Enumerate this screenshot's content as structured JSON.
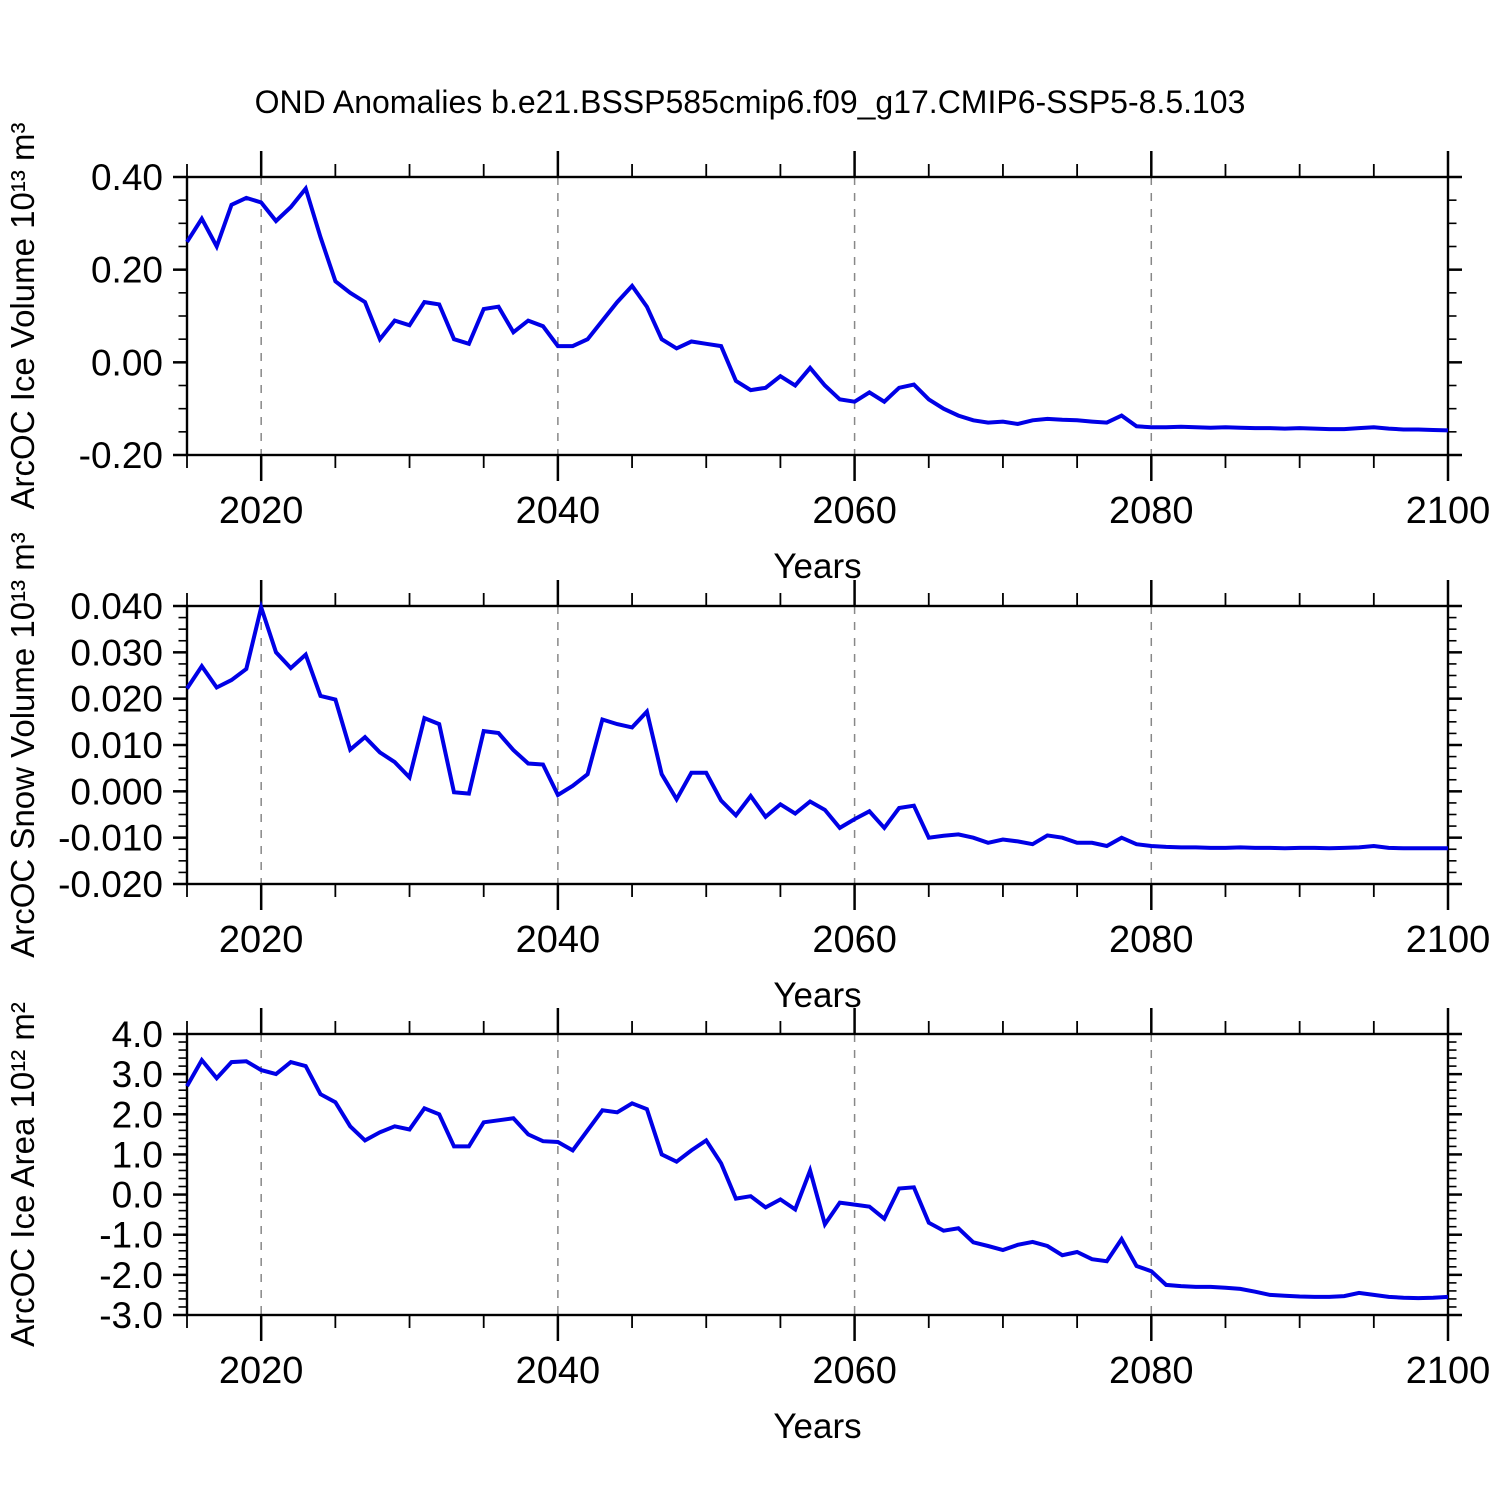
{
  "title": "OND Anomalies b.e21.BSSP585cmip6.f09_g17.CMIP6-SSP5-8.5.103",
  "colors": {
    "line": "#0000e6",
    "grid": "#888888",
    "axis": "#000000"
  },
  "chart_data": {
    "type": "line",
    "title": "OND Anomalies b.e21.BSSP585cmip6.f09_g17.CMIP6-SSP5-8.5.103",
    "xlabel": "Years",
    "x_min": 2015,
    "x_max": 2100,
    "x_major_ticks": [
      2020,
      2040,
      2060,
      2080,
      2100
    ],
    "x_tick_labels": [
      "2020",
      "2040",
      "2060",
      "2080",
      "2100"
    ],
    "x_minor_step": 5,
    "grid_x": [
      2020,
      2040,
      2060,
      2080
    ],
    "legend": "none",
    "x": [
      2015,
      2016,
      2017,
      2018,
      2019,
      2020,
      2021,
      2022,
      2023,
      2024,
      2025,
      2026,
      2027,
      2028,
      2029,
      2030,
      2031,
      2032,
      2033,
      2034,
      2035,
      2036,
      2037,
      2038,
      2039,
      2040,
      2041,
      2042,
      2043,
      2044,
      2045,
      2046,
      2047,
      2048,
      2049,
      2050,
      2051,
      2052,
      2053,
      2054,
      2055,
      2056,
      2057,
      2058,
      2059,
      2060,
      2061,
      2062,
      2063,
      2064,
      2065,
      2066,
      2067,
      2068,
      2069,
      2070,
      2071,
      2072,
      2073,
      2074,
      2075,
      2076,
      2077,
      2078,
      2079,
      2080,
      2081,
      2082,
      2083,
      2084,
      2085,
      2086,
      2087,
      2088,
      2089,
      2090,
      2091,
      2092,
      2093,
      2094,
      2095,
      2096,
      2097,
      2098,
      2099,
      2100
    ],
    "panels": [
      {
        "ylabel": "ArcOC Ice Volume 10¹³ m³",
        "ylim": [
          -0.2,
          0.4
        ],
        "y_major_ticks": [
          0.4,
          0.2,
          0.0,
          -0.2
        ],
        "y_tick_labels": [
          "0.40",
          "0.20",
          "0.00",
          "-0.20"
        ],
        "y_minor_step": 0.05,
        "values": [
          0.26,
          0.31,
          0.25,
          0.34,
          0.355,
          0.345,
          0.305,
          0.335,
          0.375,
          0.27,
          0.175,
          0.15,
          0.13,
          0.05,
          0.09,
          0.08,
          0.13,
          0.125,
          0.05,
          0.04,
          0.115,
          0.12,
          0.065,
          0.09,
          0.078,
          0.035,
          0.035,
          0.05,
          0.09,
          0.13,
          0.165,
          0.12,
          0.05,
          0.03,
          0.045,
          0.04,
          0.035,
          -0.04,
          -0.06,
          -0.055,
          -0.03,
          -0.05,
          -0.012,
          -0.05,
          -0.08,
          -0.085,
          -0.065,
          -0.085,
          -0.055,
          -0.048,
          -0.08,
          -0.1,
          -0.115,
          -0.125,
          -0.13,
          -0.128,
          -0.133,
          -0.125,
          -0.122,
          -0.124,
          -0.125,
          -0.128,
          -0.13,
          -0.115,
          -0.138,
          -0.14,
          -0.14,
          -0.139,
          -0.14,
          -0.141,
          -0.14,
          -0.141,
          -0.142,
          -0.142,
          -0.143,
          -0.142,
          -0.143,
          -0.144,
          -0.144,
          -0.142,
          -0.14,
          -0.143,
          -0.145,
          -0.145,
          -0.146,
          -0.147
        ]
      },
      {
        "ylabel": "ArcOC Snow Volume 10¹³ m³",
        "ylim": [
          -0.02,
          0.04
        ],
        "y_major_ticks": [
          0.04,
          0.03,
          0.02,
          0.01,
          0.0,
          -0.01,
          -0.02
        ],
        "y_tick_labels": [
          "0.040",
          "0.030",
          "0.020",
          "0.010",
          "0.000",
          "-0.010",
          "-0.020"
        ],
        "y_minor_step": 0.0025,
        "values": [
          0.0222,
          0.027,
          0.0224,
          0.024,
          0.0264,
          0.0397,
          0.03,
          0.0266,
          0.0295,
          0.0206,
          0.0198,
          0.009,
          0.0117,
          0.0084,
          0.0063,
          0.003,
          0.0158,
          0.0145,
          -0.0002,
          -0.0005,
          0.013,
          0.0126,
          0.0089,
          0.006,
          0.0058,
          -0.0008,
          0.0012,
          0.0037,
          0.0155,
          0.0145,
          0.0138,
          0.0172,
          0.0037,
          -0.0017,
          0.004,
          0.004,
          -0.002,
          -0.0052,
          -0.001,
          -0.0055,
          -0.0028,
          -0.0048,
          -0.0022,
          -0.004,
          -0.0079,
          -0.006,
          -0.0043,
          -0.0079,
          -0.0036,
          -0.0031,
          -0.01,
          -0.0096,
          -0.0093,
          -0.01,
          -0.0111,
          -0.0104,
          -0.0108,
          -0.0114,
          -0.0095,
          -0.01,
          -0.0111,
          -0.0111,
          -0.0118,
          -0.01,
          -0.0114,
          -0.0118,
          -0.012,
          -0.0121,
          -0.0121,
          -0.0122,
          -0.0122,
          -0.0121,
          -0.0122,
          -0.0122,
          -0.0123,
          -0.0122,
          -0.0122,
          -0.0123,
          -0.0122,
          -0.0121,
          -0.0118,
          -0.0122,
          -0.0123,
          -0.0123,
          -0.0123,
          -0.0123
        ]
      },
      {
        "ylabel": "ArcOC Ice Area 10¹² m²",
        "ylim": [
          -3.0,
          4.0
        ],
        "y_major_ticks": [
          4.0,
          3.0,
          2.0,
          1.0,
          0.0,
          -1.0,
          -2.0,
          -3.0
        ],
        "y_tick_labels": [
          "4.0",
          "3.0",
          "2.0",
          "1.0",
          "0.0",
          "-1.0",
          "-2.0",
          "-3.0"
        ],
        "y_minor_step": 0.2,
        "values": [
          2.7,
          3.35,
          2.9,
          3.3,
          3.32,
          3.1,
          3.0,
          3.3,
          3.2,
          2.5,
          2.3,
          1.7,
          1.35,
          1.55,
          1.7,
          1.62,
          2.15,
          2.0,
          1.2,
          1.2,
          1.8,
          1.85,
          1.9,
          1.5,
          1.33,
          1.31,
          1.1,
          1.6,
          2.1,
          2.05,
          2.27,
          2.13,
          1.0,
          0.82,
          1.1,
          1.35,
          0.78,
          -0.1,
          -0.04,
          -0.32,
          -0.12,
          -0.37,
          0.6,
          -0.74,
          -0.2,
          -0.25,
          -0.3,
          -0.6,
          0.15,
          0.18,
          -0.7,
          -0.9,
          -0.84,
          -1.19,
          -1.28,
          -1.38,
          -1.25,
          -1.18,
          -1.28,
          -1.51,
          -1.43,
          -1.61,
          -1.66,
          -1.11,
          -1.78,
          -1.91,
          -2.25,
          -2.28,
          -2.3,
          -2.3,
          -2.32,
          -2.35,
          -2.42,
          -2.5,
          -2.52,
          -2.54,
          -2.55,
          -2.55,
          -2.53,
          -2.45,
          -2.5,
          -2.55,
          -2.57,
          -2.58,
          -2.57,
          -2.55
        ]
      }
    ]
  }
}
